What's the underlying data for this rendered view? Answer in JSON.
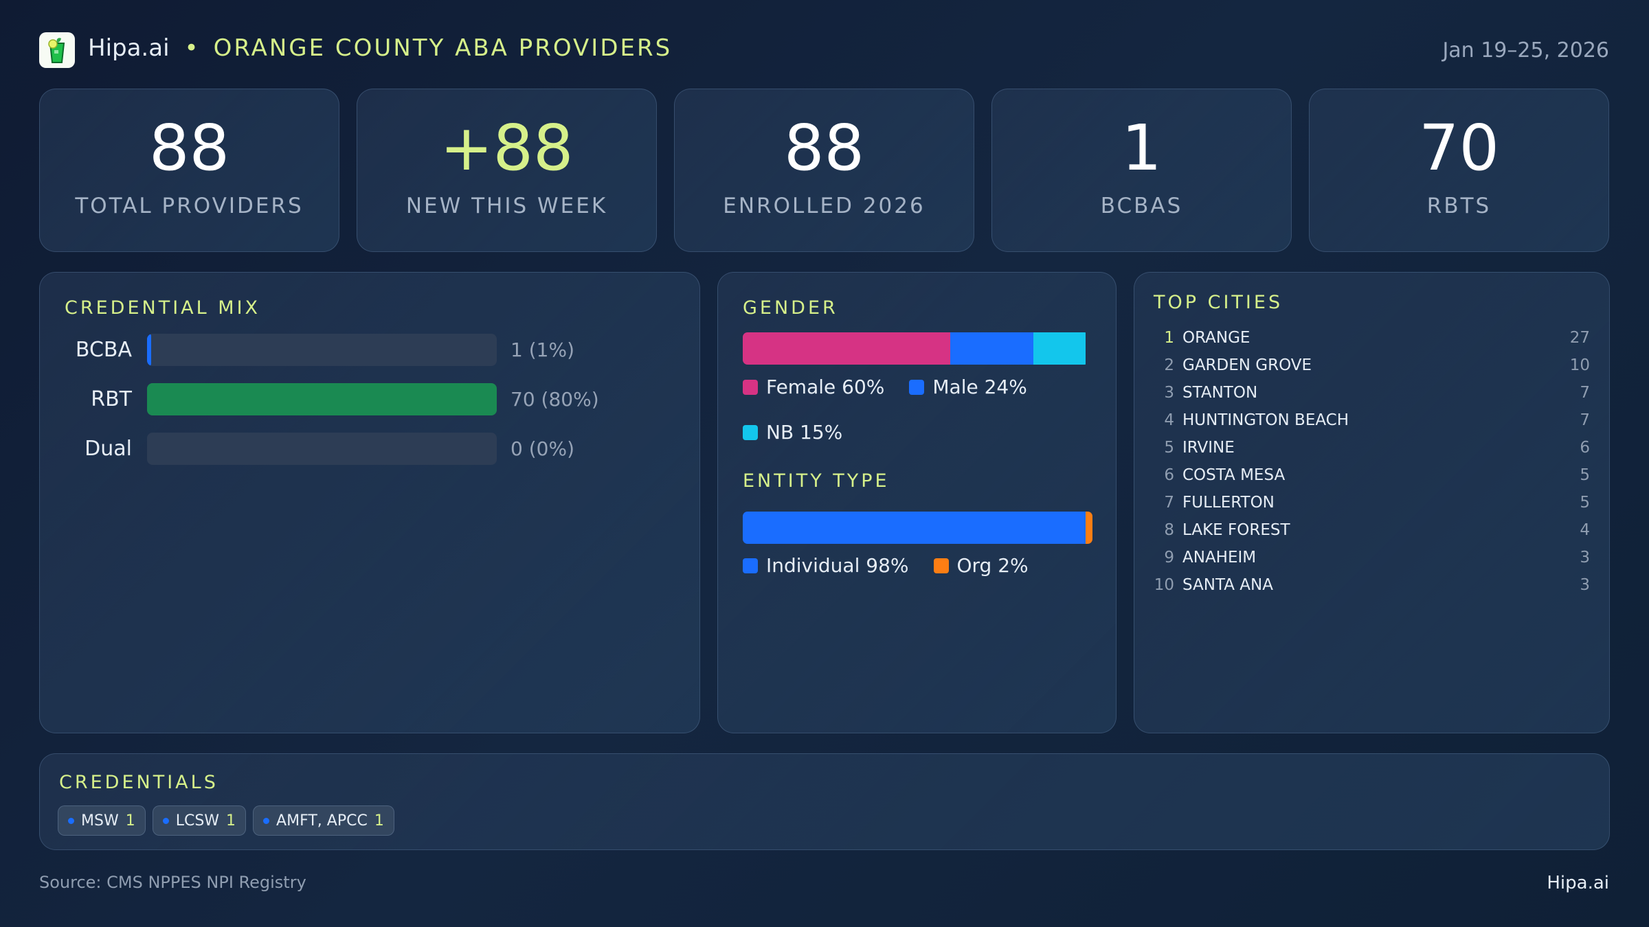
{
  "header": {
    "brand": "Hipa.ai",
    "separator": "•",
    "title": "ORANGE COUNTY ABA PROVIDERS",
    "date_range": "Jan 19–25, 2026",
    "logo_icon": "mojito-glass-icon"
  },
  "kpis": [
    {
      "value": "88",
      "label": "TOTAL PROVIDERS"
    },
    {
      "value": "+88",
      "label": "NEW THIS WEEK",
      "accent": true
    },
    {
      "value": "88",
      "label": "ENROLLED 2026"
    },
    {
      "value": "1",
      "label": "BCBAS"
    },
    {
      "value": "70",
      "label": "RBTS"
    }
  ],
  "credential_mix": {
    "title": "CREDENTIAL MIX",
    "rows": [
      {
        "label": "BCBA",
        "count": "1",
        "pct": "(1%)",
        "percent": 1,
        "color": "#1a6dff"
      },
      {
        "label": "RBT",
        "count": "70",
        "pct": "(80%)",
        "percent": 80,
        "color": "#1a8a52"
      },
      {
        "label": "Dual",
        "count": "0",
        "pct": "(0%)",
        "percent": 0,
        "color": "#1a6dff"
      }
    ]
  },
  "gender": {
    "title": "GENDER",
    "segments": [
      {
        "label": "Female 60%",
        "percent": 60,
        "color": "#d63384"
      },
      {
        "label": "Male 24%",
        "percent": 24,
        "color": "#1a6dff"
      },
      {
        "label": "NB 15%",
        "percent": 15,
        "color": "#13c6ec"
      }
    ]
  },
  "entity_type": {
    "title": "ENTITY TYPE",
    "segments": [
      {
        "label": "Individual 98%",
        "percent": 98,
        "color": "#1a6dff"
      },
      {
        "label": "Org 2%",
        "percent": 2,
        "color": "#fd7e14"
      }
    ]
  },
  "top_cities": {
    "title": "TOP CITIES",
    "items": [
      {
        "rank": "1",
        "name": "ORANGE",
        "count": "27"
      },
      {
        "rank": "2",
        "name": "GARDEN GROVE",
        "count": "10"
      },
      {
        "rank": "3",
        "name": "STANTON",
        "count": "7"
      },
      {
        "rank": "4",
        "name": "HUNTINGTON BEACH",
        "count": "7"
      },
      {
        "rank": "5",
        "name": "IRVINE",
        "count": "6"
      },
      {
        "rank": "6",
        "name": "COSTA MESA",
        "count": "5"
      },
      {
        "rank": "7",
        "name": "FULLERTON",
        "count": "5"
      },
      {
        "rank": "8",
        "name": "LAKE FOREST",
        "count": "4"
      },
      {
        "rank": "9",
        "name": "ANAHEIM",
        "count": "3"
      },
      {
        "rank": "10",
        "name": "SANTA ANA",
        "count": "3"
      }
    ]
  },
  "credentials": {
    "title": "CREDENTIALS",
    "chips": [
      {
        "label": "MSW",
        "count": "1"
      },
      {
        "label": "LCSW",
        "count": "1"
      },
      {
        "label": "AMFT, APCC",
        "count": "1"
      }
    ]
  },
  "footer": {
    "source": "Source: CMS NPPES NPI Registry",
    "brand": "Hipa.ai"
  },
  "colors": {
    "accent": "#d6f08a",
    "background": "#0f1b33"
  }
}
